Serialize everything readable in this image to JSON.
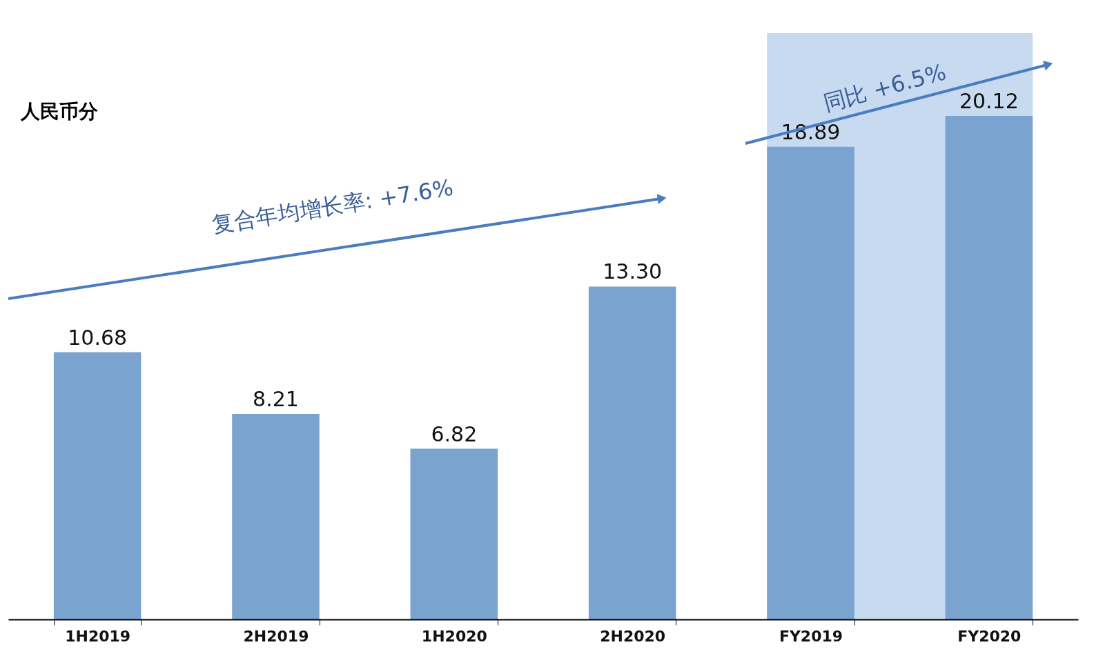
{
  "chart_data": {
    "type": "bar",
    "ylabel": "人民币分",
    "categories": [
      "1H2019",
      "2H2019",
      "1H2020",
      "2H2020",
      "FY2019",
      "FY2020"
    ],
    "values": [
      10.68,
      8.21,
      6.82,
      13.3,
      18.89,
      20.12
    ],
    "color": "#7ba3cf",
    "value_labels": [
      "10.68",
      "8.21",
      "6.82",
      "13.30",
      "18.89",
      "20.12"
    ],
    "tick_labels": "x",
    "bands": [
      {
        "axis": "x",
        "from": "FY2019",
        "to": "FY2020",
        "color": "#c8daf0"
      }
    ],
    "annotations": [
      "复合年均增长率: +7.6%",
      "同比 +6.5%"
    ]
  }
}
